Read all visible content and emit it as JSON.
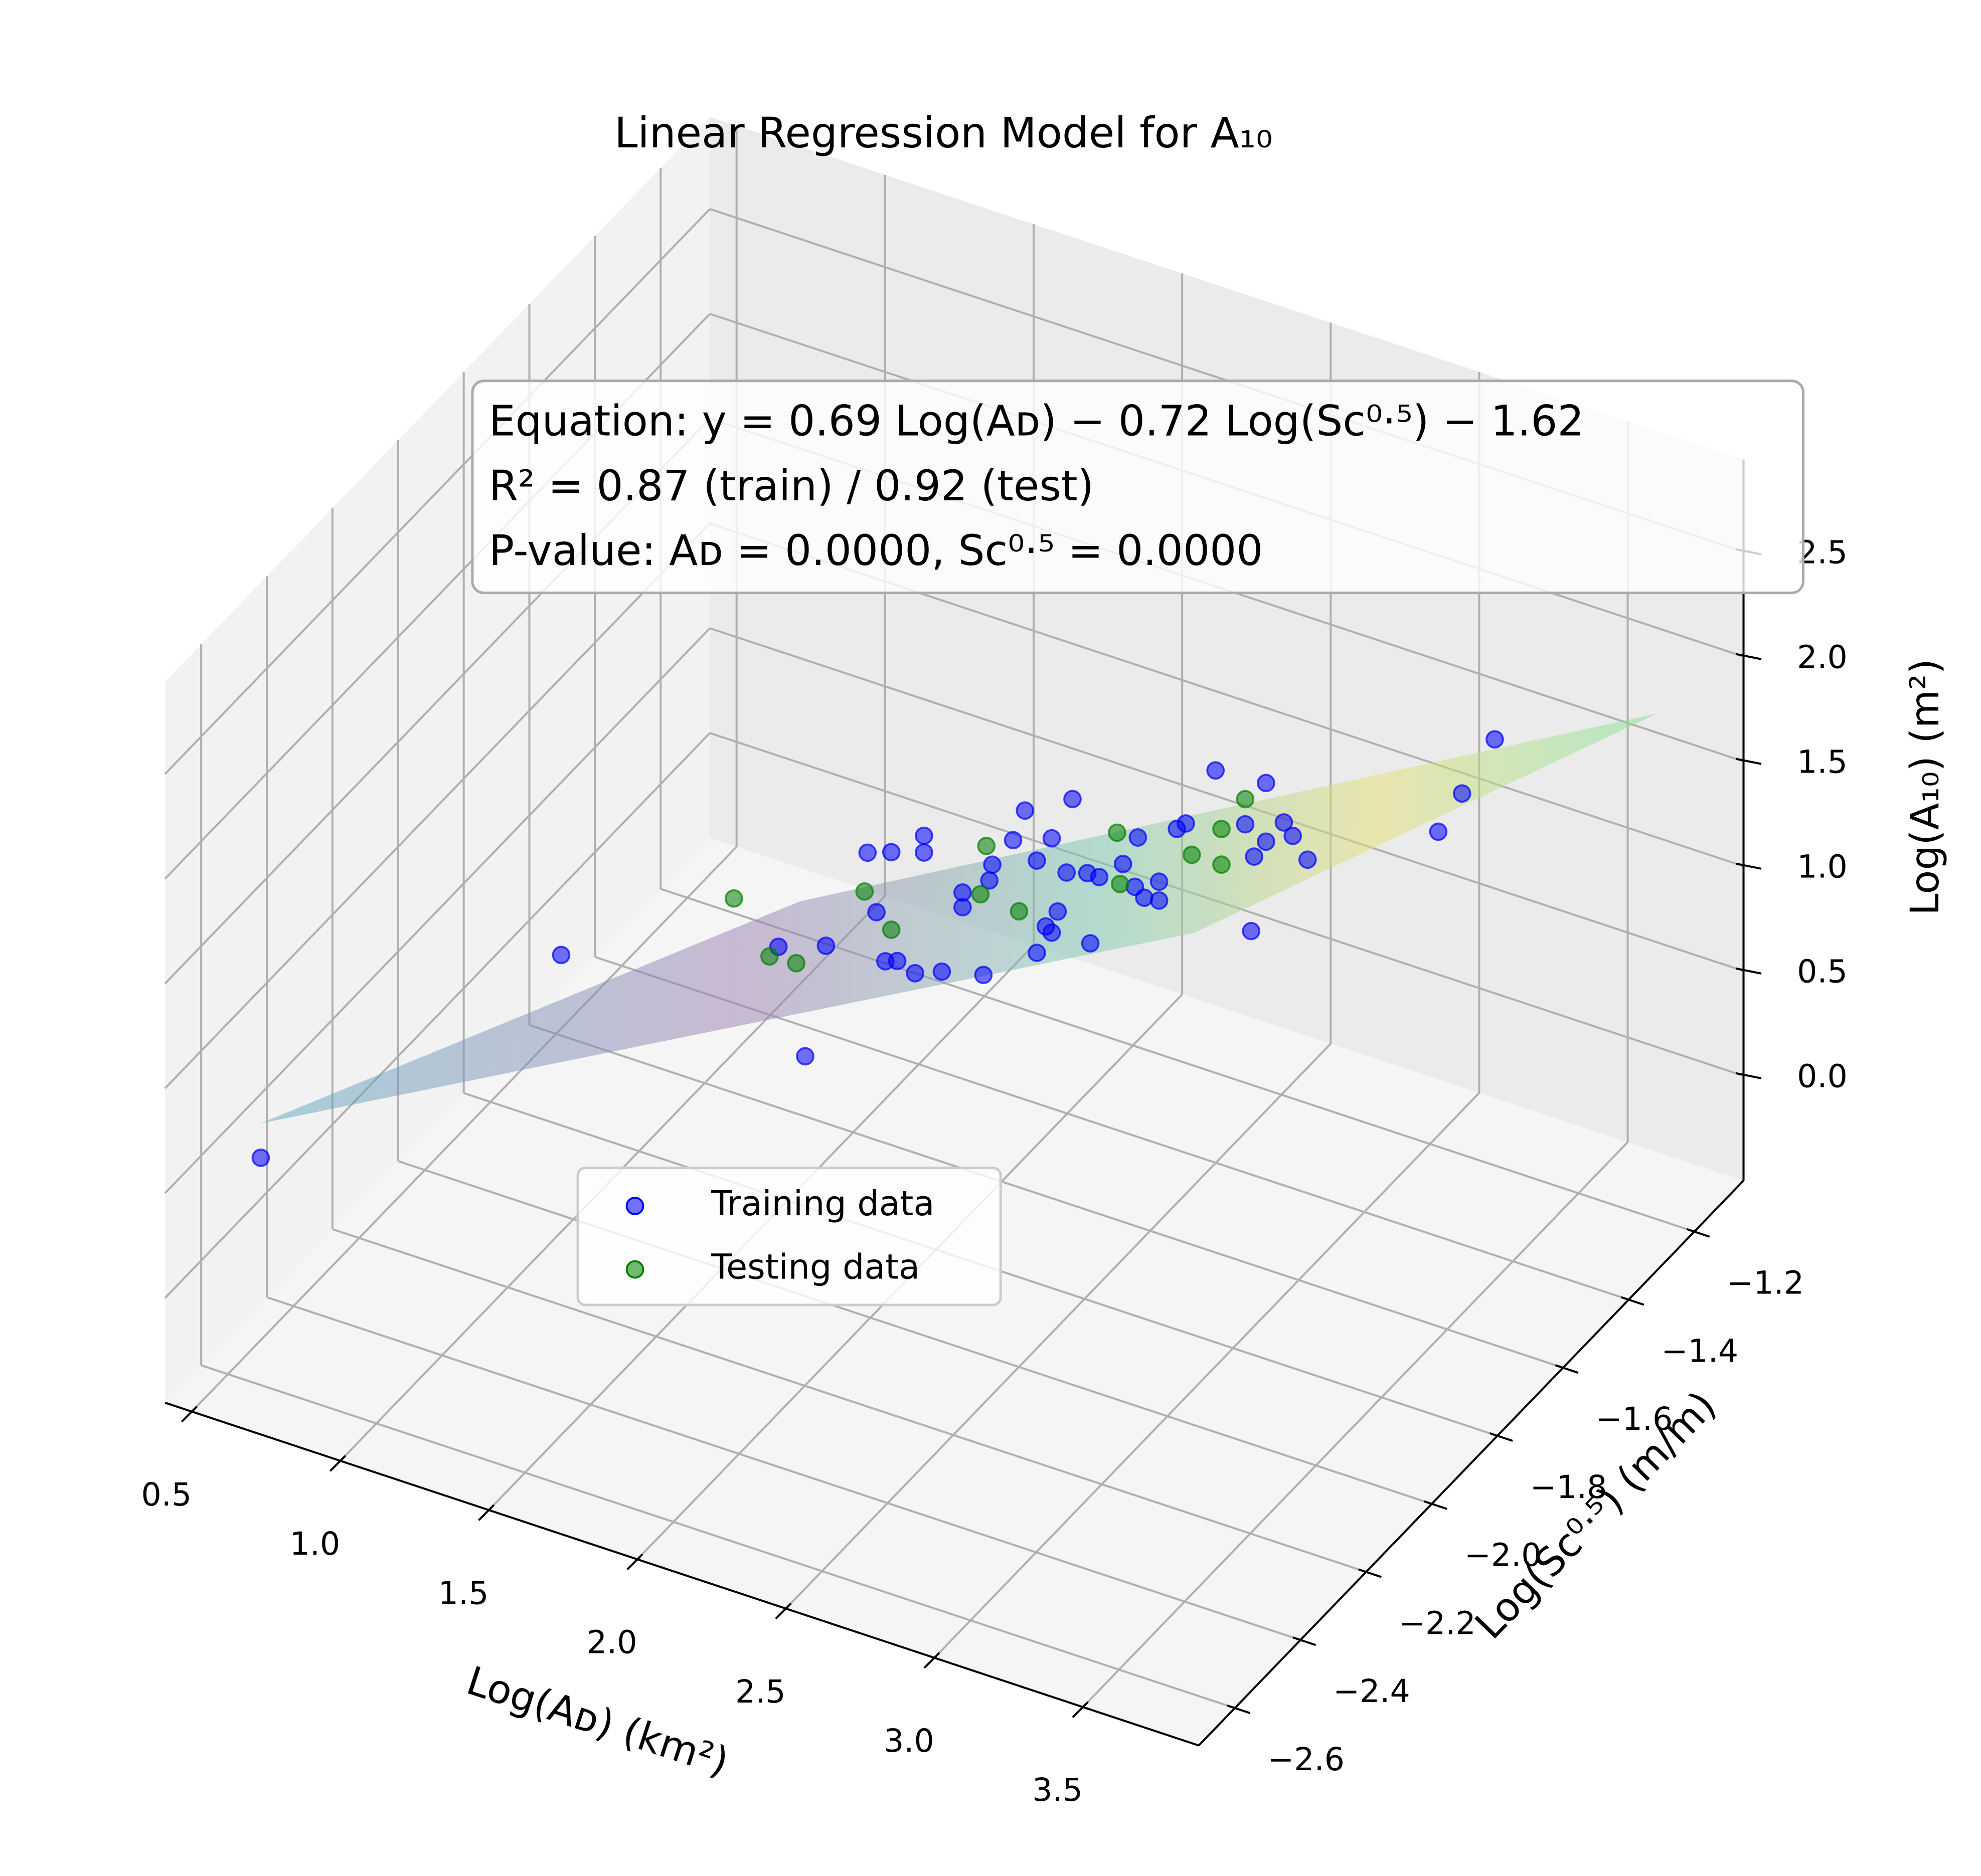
{
  "chart_data": {
    "type": "scatter3d",
    "title": "Linear Regression Model for A₁₀",
    "xlabel": "Log(Aᴅ) (km²)",
    "ylabel": "Log(Sᴄ⁰·⁵) (m/m)",
    "zlabel": "Log(A₁₀) (m²)",
    "annotation": [
      "Equation: y = 0.69 Log(Aᴅ) − 0.72 Log(Sᴄ⁰·⁵) − 1.62",
      "R² = 0.87 (train) / 0.92 (test)",
      "P-value: Aᴅ = 0.0000, Sᴄ⁰·⁵ = 0.0000"
    ],
    "xlim": [
      0.41,
      3.89
    ],
    "ylim": [
      -2.71,
      -1.05
    ],
    "zlim": [
      -0.5,
      2.94
    ],
    "xticks": [
      0.5,
      {
        "value": 1,
        "label": "1.0"
      },
      1.5,
      {
        "value": 2,
        "label": "2.0"
      },
      2.5,
      {
        "value": 3,
        "label": "3.0"
      },
      3.5
    ],
    "yticks": [
      {
        "value": -2.6,
        "label": "−2.6"
      },
      {
        "value": -2.4,
        "label": "−2.4"
      },
      {
        "value": -2.2,
        "label": "−2.2"
      },
      {
        "value": -2.0,
        "label": "−2.0"
      },
      {
        "value": -1.8,
        "label": "−1.8"
      },
      {
        "value": -1.6,
        "label": "−1.6"
      },
      {
        "value": -1.4,
        "label": "−1.4"
      },
      {
        "value": -1.2,
        "label": "−1.2"
      }
    ],
    "zticks": [
      {
        "value": 0,
        "label": "0.0"
      },
      0.5,
      {
        "value": 1,
        "label": "1.0"
      },
      1.5,
      {
        "value": 2,
        "label": "2.0"
      },
      2.5
    ],
    "grid": true,
    "legend": "lower left",
    "series": [
      {
        "name": "Training data",
        "color": "#0000ff",
        "x": [
          0.5,
          1.18,
          1.67,
          1.58,
          1.74,
          1.88,
          1.96,
          1.91,
          1.94,
          1.98,
          2.07,
          2.07,
          2.04,
          2.13,
          2.2,
          2.2,
          2.27,
          2.29,
          2.3,
          2.37,
          2.41,
          2.45,
          2.45,
          2.48,
          2.5,
          2.52,
          2.5,
          2.57,
          2.55,
          2.62,
          2.63,
          2.66,
          2.74,
          2.78,
          2.79,
          2.48,
          2.53,
          2.53,
          2.59,
          2.62,
          2.72,
          2.82,
          2.84,
          2.85,
          2.89,
          2.89,
          2.95,
          2.98,
          3.03,
          3.47,
          3.55,
          3.66
        ],
        "y": [
          -2.5,
          -2.2,
          -1.9,
          -1.9,
          -1.9,
          -1.9,
          -1.9,
          -1.9,
          -1.9,
          -1.9,
          -1.9,
          -1.9,
          -1.9,
          -1.9,
          -1.9,
          -1.9,
          -1.9,
          -1.9,
          -1.9,
          -1.9,
          -1.9,
          -1.9,
          -1.9,
          -1.9,
          -1.9,
          -1.9,
          -1.9,
          -1.9,
          -1.9,
          -1.9,
          -1.9,
          -1.9,
          -1.9,
          -1.9,
          -1.9,
          -1.6,
          -1.6,
          -1.6,
          -1.6,
          -1.6,
          -1.6,
          -1.6,
          -1.6,
          -1.6,
          -1.6,
          -1.6,
          -1.6,
          -1.6,
          -1.6,
          -1.6,
          -1.6,
          -1.6
        ],
        "z": [
          0.37,
          1.17,
          0.43,
          0.91,
          0.99,
          1.5,
          1.54,
          1.23,
          1.01,
          1.03,
          1.67,
          1.59,
          1.0,
          1.05,
          1.46,
          1.39,
          1.1,
          1.56,
          1.64,
          1.79,
          1.95,
          1.73,
          1.29,
          1.43,
          1.41,
          1.52,
          1.86,
          2.08,
          1.72,
          1.75,
          1.42,
          1.75,
          1.85,
          1.76,
          2.0,
          1.08,
          1.18,
          1.09,
          1.46,
          1.5,
          1.8,
          1.59,
          1.09,
          1.45,
          1.82,
          1.54,
          1.66,
          1.61,
          1.52,
          1.86,
          2.08,
          2.39
        ]
      },
      {
        "name": "Testing data",
        "color": "#008000",
        "x": [
          1.43,
          1.55,
          1.64,
          1.87,
          1.96,
          2.26,
          2.28,
          2.39,
          2.72,
          2.73,
          2.64,
          2.74,
          2.74,
          2.82
        ],
        "y": [
          -1.9,
          -1.9,
          -1.9,
          -1.9,
          -1.9,
          -1.9,
          -1.9,
          -1.9,
          -1.9,
          -1.9,
          -1.6,
          -1.6,
          -1.6,
          -1.6
        ],
        "z": [
          1.07,
          0.85,
          0.86,
          1.31,
          1.17,
          1.48,
          1.72,
          1.46,
          1.99,
          1.75,
          1.36,
          1.53,
          1.36,
          1.71
        ]
      }
    ]
  }
}
